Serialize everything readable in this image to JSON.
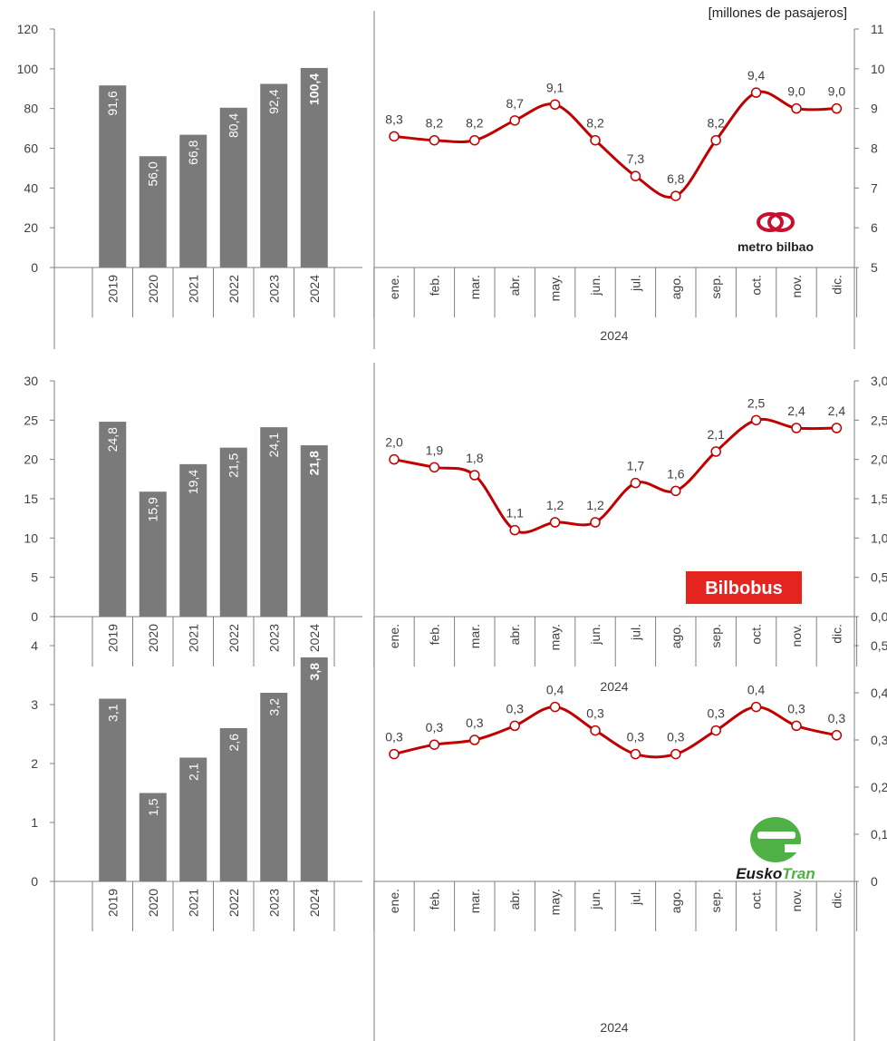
{
  "unit_label": "[millones de pasajeros]",
  "colors": {
    "bar": "#7a7a7a",
    "line": "#c00000",
    "axis": "#7f7f7f",
    "text": "#404040"
  },
  "chart_data": [
    {
      "type": "bar",
      "operator": "metro bilbao",
      "logo_text": "metro bilbao",
      "categories": [
        "2019",
        "2020",
        "2021",
        "2022",
        "2023",
        "2024"
      ],
      "values": [
        91.6,
        56.0,
        66.8,
        80.4,
        92.4,
        100.4
      ],
      "labels": [
        "91,6",
        "56,0",
        "66,8",
        "80,4",
        "92,4",
        "100,4"
      ],
      "ylim": [
        0,
        120
      ],
      "yticks": [
        "0",
        "20",
        "40",
        "60",
        "80",
        "100",
        "120"
      ]
    },
    {
      "type": "line",
      "operator": "metro bilbao",
      "categories": [
        "ene.",
        "feb.",
        "mar.",
        "abr.",
        "may.",
        "jun.",
        "jul.",
        "ago.",
        "sep.",
        "oct.",
        "nov.",
        "dic."
      ],
      "values": [
        8.3,
        8.2,
        8.2,
        8.7,
        9.1,
        8.2,
        7.3,
        6.8,
        8.2,
        9.4,
        9.0,
        9.0
      ],
      "labels": [
        "8,3",
        "8,2",
        "8,2",
        "8,7",
        "9,1",
        "8,2",
        "7,3",
        "6,8",
        "8,2",
        "9,4",
        "9,0",
        "9,0"
      ],
      "ylim": [
        5,
        11
      ],
      "yticks": [
        "5",
        "6",
        "7",
        "8",
        "9",
        "10",
        "11"
      ],
      "xlabel": "2024"
    },
    {
      "type": "bar",
      "operator": "Bilbobus",
      "logo_text": "Bilbobus",
      "categories": [
        "2019",
        "2020",
        "2021",
        "2022",
        "2023",
        "2024"
      ],
      "values": [
        24.8,
        15.9,
        19.4,
        21.5,
        24.1,
        21.8
      ],
      "labels": [
        "24,8",
        "15,9",
        "19,4",
        "21,5",
        "24,1",
        "21,8"
      ],
      "ylim": [
        0,
        30
      ],
      "yticks": [
        "0",
        "5",
        "10",
        "15",
        "20",
        "25",
        "30"
      ]
    },
    {
      "type": "line",
      "operator": "Bilbobus",
      "categories": [
        "ene.",
        "feb.",
        "mar.",
        "abr.",
        "may.",
        "jun.",
        "jul.",
        "ago.",
        "sep.",
        "oct.",
        "nov.",
        "dic."
      ],
      "values": [
        2.0,
        1.9,
        1.8,
        1.1,
        1.2,
        1.2,
        1.7,
        1.6,
        2.1,
        2.5,
        2.4,
        2.4
      ],
      "labels": [
        "2,0",
        "1,9",
        "1,8",
        "1,1",
        "1,2",
        "1,2",
        "1,7",
        "1,6",
        "2,1",
        "2,5",
        "2,4",
        "2,4"
      ],
      "ylim": [
        0,
        3
      ],
      "yticks": [
        "0,0",
        "0,5",
        "1,0",
        "1,5",
        "2,0",
        "2,5",
        "3,0"
      ],
      "xlabel": "2024"
    },
    {
      "type": "bar",
      "operator": "EuskoTran",
      "logo_text_a": "Eusko",
      "logo_text_b": "Tran",
      "categories": [
        "2019",
        "2020",
        "2021",
        "2022",
        "2023",
        "2024"
      ],
      "values": [
        3.1,
        1.5,
        2.1,
        2.6,
        3.2,
        3.8
      ],
      "labels": [
        "3,1",
        "1,5",
        "2,1",
        "2,6",
        "3,2",
        "3,8"
      ],
      "ylim": [
        0,
        4
      ],
      "yticks": [
        "0",
        "1",
        "2",
        "3",
        "4"
      ]
    },
    {
      "type": "line",
      "operator": "EuskoTran",
      "categories": [
        "ene.",
        "feb.",
        "mar.",
        "abr.",
        "may.",
        "jun.",
        "jul.",
        "ago.",
        "sep.",
        "oct.",
        "nov.",
        "dic."
      ],
      "values": [
        0.27,
        0.29,
        0.3,
        0.33,
        0.37,
        0.32,
        0.27,
        0.27,
        0.32,
        0.37,
        0.33,
        0.31
      ],
      "labels": [
        "0,3",
        "0,3",
        "0,3",
        "0,3",
        "0,4",
        "0,3",
        "0,3",
        "0,3",
        "0,3",
        "0,4",
        "0,3",
        "0,3"
      ],
      "ylim": [
        0,
        0.5
      ],
      "yticks": [
        "0",
        "0,1",
        "0,2",
        "0,3",
        "0,4",
        "0,5"
      ],
      "xlabel": "2024"
    }
  ]
}
